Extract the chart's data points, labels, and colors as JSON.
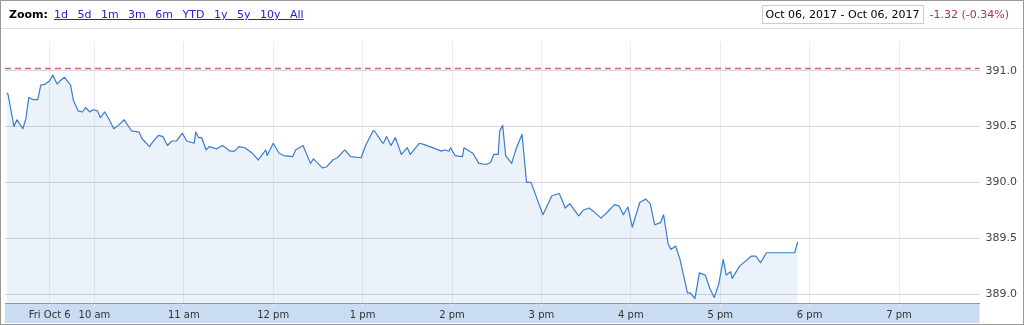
{
  "chart_data": {
    "type": "area",
    "annotations": [
      "Zoom:",
      "1d 5d 1m 3m 6m YTD 1y 5y 10y All",
      "Oct 06, 2017 - Oct 06, 2017",
      "-1.32 (-0.34%)"
    ],
    "series": [
      {
        "color": "#3a7dcc",
        "x": [
          "2017-10-06T09:01",
          "2017-10-06T09:02",
          "2017-10-06T09:06",
          "2017-10-06T09:08",
          "2017-10-06T09:12",
          "2017-10-06T09:14",
          "2017-10-06T09:16",
          "2017-10-06T09:19",
          "2017-10-06T09:22",
          "2017-10-06T09:24",
          "2017-10-06T09:27",
          "2017-10-06T09:30",
          "2017-10-06T09:32",
          "2017-10-06T09:35",
          "2017-10-06T09:37",
          "2017-10-06T09:40",
          "2017-10-06T09:44",
          "2017-10-06T09:46",
          "2017-10-06T09:49",
          "2017-10-06T09:52",
          "2017-10-06T09:54",
          "2017-10-06T09:57",
          "2017-10-06T09:59",
          "2017-10-06T10:02",
          "2017-10-06T10:04",
          "2017-10-06T10:07",
          "2017-10-06T10:10",
          "2017-10-06T10:13",
          "2017-10-06T10:16",
          "2017-10-06T10:20",
          "2017-10-06T10:25",
          "2017-10-06T10:30",
          "2017-10-06T10:32",
          "2017-10-06T10:37",
          "2017-10-06T10:39",
          "2017-10-06T10:43",
          "2017-10-06T10:46",
          "2017-10-06T10:49",
          "2017-10-06T10:52",
          "2017-10-06T10:55",
          "2017-10-06T10:59",
          "2017-10-06T11:02",
          "2017-10-06T11:07",
          "2017-10-06T11:08",
          "2017-10-06T11:10",
          "2017-10-06T11:12",
          "2017-10-06T11:15",
          "2017-10-06T11:17",
          "2017-10-06T11:22",
          "2017-10-06T11:26",
          "2017-10-06T11:31",
          "2017-10-06T11:34",
          "2017-10-06T11:37",
          "2017-10-06T11:41",
          "2017-10-06T11:46",
          "2017-10-06T11:50",
          "2017-10-06T11:51",
          "2017-10-06T11:55",
          "2017-10-06T11:56",
          "2017-10-06T12:00",
          "2017-10-06T12:04",
          "2017-10-06T12:07",
          "2017-10-06T12:13",
          "2017-10-06T12:15",
          "2017-10-06T12:20",
          "2017-10-06T12:25",
          "2017-10-06T12:27",
          "2017-10-06T12:33",
          "2017-10-06T12:36",
          "2017-10-06T12:40",
          "2017-10-06T12:43",
          "2017-10-06T12:48",
          "2017-10-06T12:52",
          "2017-10-06T12:59",
          "2017-10-06T13:02",
          "2017-10-06T13:07",
          "2017-10-06T13:08",
          "2017-10-06T13:13",
          "2017-10-06T13:14",
          "2017-10-06T13:16",
          "2017-10-06T13:19",
          "2017-10-06T13:22",
          "2017-10-06T13:26",
          "2017-10-06T13:30",
          "2017-10-06T13:32",
          "2017-10-06T13:38",
          "2017-10-06T13:41",
          "2017-10-06T13:45",
          "2017-10-06T13:49",
          "2017-10-06T13:53",
          "2017-10-06T13:55",
          "2017-10-06T13:58",
          "2017-10-06T13:59",
          "2017-10-06T14:02",
          "2017-10-06T14:07",
          "2017-10-06T14:08",
          "2017-10-06T14:14",
          "2017-10-06T14:18",
          "2017-10-06T14:23",
          "2017-10-06T14:26",
          "2017-10-06T14:28",
          "2017-10-06T14:31",
          "2017-10-06T14:32",
          "2017-10-06T14:34",
          "2017-10-06T14:36",
          "2017-10-06T14:40",
          "2017-10-06T14:43",
          "2017-10-06T14:47",
          "2017-10-06T14:50",
          "2017-10-06T14:53",
          "2017-10-06T15:01",
          "2017-10-06T15:07",
          "2017-10-06T15:12",
          "2017-10-06T15:16",
          "2017-10-06T15:19",
          "2017-10-06T15:25",
          "2017-10-06T15:28",
          "2017-10-06T15:32",
          "2017-10-06T15:35",
          "2017-10-06T15:40",
          "2017-10-06T15:44",
          "2017-10-06T15:49",
          "2017-10-06T15:52",
          "2017-10-06T15:55",
          "2017-10-06T15:58",
          "2017-10-06T16:01",
          "2017-10-06T16:06",
          "2017-10-06T16:10",
          "2017-10-06T16:13",
          "2017-10-06T16:16",
          "2017-10-06T16:20",
          "2017-10-06T16:22",
          "2017-10-06T16:25",
          "2017-10-06T16:27",
          "2017-10-06T16:30",
          "2017-10-06T16:33",
          "2017-10-06T16:38",
          "2017-10-06T16:40",
          "2017-10-06T16:43",
          "2017-10-06T16:46",
          "2017-10-06T16:50",
          "2017-10-06T16:53",
          "2017-10-06T16:56",
          "2017-10-06T16:59",
          "2017-10-06T17:02",
          "2017-10-06T17:04",
          "2017-10-06T17:07",
          "2017-10-06T17:08",
          "2017-10-06T17:13",
          "2017-10-06T17:21",
          "2017-10-06T17:24",
          "2017-10-06T17:27",
          "2017-10-06T17:31",
          "2017-10-06T17:50",
          "2017-10-06T17:52"
        ],
        "values": [
          390.8,
          390.79,
          390.5,
          390.56,
          390.48,
          390.57,
          390.76,
          390.74,
          390.74,
          390.87,
          390.88,
          390.91,
          390.96,
          390.88,
          390.91,
          390.94,
          390.87,
          390.73,
          390.64,
          390.63,
          390.67,
          390.63,
          390.65,
          390.64,
          390.58,
          390.63,
          390.56,
          390.48,
          390.51,
          390.56,
          390.46,
          390.45,
          390.39,
          390.32,
          390.36,
          390.42,
          390.41,
          390.33,
          390.37,
          390.37,
          390.44,
          390.37,
          390.35,
          390.45,
          390.4,
          390.4,
          390.29,
          390.32,
          390.3,
          390.33,
          390.28,
          390.28,
          390.32,
          390.31,
          390.26,
          390.2,
          390.22,
          390.29,
          390.24,
          390.35,
          390.26,
          390.24,
          390.23,
          390.29,
          390.33,
          390.17,
          390.21,
          390.13,
          390.14,
          390.2,
          390.22,
          390.29,
          390.23,
          390.22,
          390.33,
          390.46,
          390.46,
          390.36,
          390.35,
          390.41,
          390.33,
          390.4,
          390.25,
          390.31,
          390.25,
          390.35,
          390.34,
          390.32,
          390.3,
          390.28,
          390.29,
          390.28,
          390.31,
          390.24,
          390.23,
          390.31,
          390.26,
          390.17,
          390.16,
          390.18,
          390.25,
          390.25,
          390.46,
          390.51,
          390.24,
          390.17,
          390.3,
          390.43,
          390.0,
          390.0,
          389.71,
          389.88,
          389.9,
          389.77,
          389.81,
          389.7,
          389.75,
          389.77,
          389.74,
          389.68,
          389.73,
          389.8,
          389.79,
          389.71,
          389.78,
          389.6,
          389.82,
          389.85,
          389.81,
          389.62,
          389.64,
          389.71,
          389.45,
          389.4,
          389.43,
          389.31,
          389.01,
          389.01,
          388.96,
          389.19,
          389.17,
          389.05,
          388.97,
          389.09,
          389.31,
          389.17,
          389.2,
          389.14,
          389.25,
          389.34,
          389.34,
          389.28,
          389.37,
          389.37,
          389.47
        ]
      }
    ],
    "xlim": [
      "2017-10-06T09:00",
      "2017-10-06T19:54"
    ],
    "xticks": [
      {
        "value": "2017-10-06T09:30",
        "label": "Fri Oct 6"
      },
      {
        "value": "2017-10-06T10:00",
        "label": "10 am"
      },
      {
        "value": "2017-10-06T11:00",
        "label": "11 am"
      },
      {
        "value": "2017-10-06T12:00",
        "label": "12 pm"
      },
      {
        "value": "2017-10-06T13:00",
        "label": "1 pm"
      },
      {
        "value": "2017-10-06T14:00",
        "label": "2 pm"
      },
      {
        "value": "2017-10-06T15:00",
        "label": "3 pm"
      },
      {
        "value": "2017-10-06T16:00",
        "label": "4 pm"
      },
      {
        "value": "2017-10-06T17:00",
        "label": "5 pm"
      },
      {
        "value": "2017-10-06T18:00",
        "label": "6 pm"
      },
      {
        "value": "2017-10-06T19:00",
        "label": "7 pm"
      }
    ],
    "ylim": [
      388.92,
      391.26
    ],
    "yticks": [
      {
        "value": 389,
        "label": "389.0"
      },
      {
        "value": 389.5,
        "label": "389.5"
      },
      {
        "value": 390,
        "label": "390.0"
      },
      {
        "value": 390.5,
        "label": "390.5"
      },
      {
        "value": 391,
        "label": "391.0"
      }
    ],
    "ref_lines": [
      {
        "axis": "y",
        "value": 391.02,
        "color": "#cc6666",
        "line_style": "dashed"
      }
    ],
    "grid": true,
    "legend": false,
    "marker": "none",
    "line_style": "solid"
  }
}
